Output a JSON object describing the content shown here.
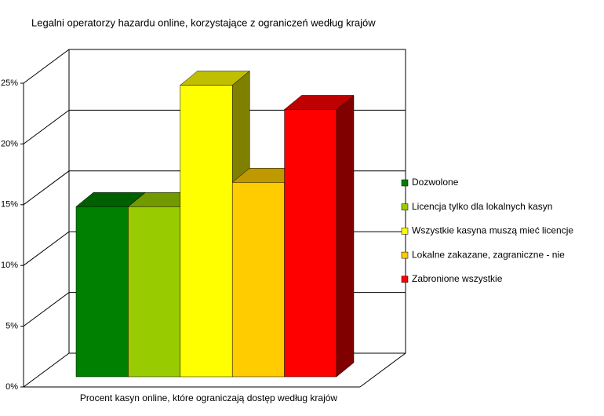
{
  "chart_data": {
    "type": "bar3d",
    "title": "Legalni operatorzy hazardu online, korzystające z ograniczeń według krajów",
    "categories": [
      "Procent kasyn online, które ograniczają dostęp według krajów"
    ],
    "series": [
      {
        "name": "Dozwolone",
        "color": "#008000",
        "values": [
          14
        ]
      },
      {
        "name": "Licencja tylko dla lokalnych kasyn",
        "color": "#99cc00",
        "values": [
          14
        ]
      },
      {
        "name": "Wszystkie kasyna muszą mieć licencje",
        "color": "#ffff00",
        "values": [
          24
        ]
      },
      {
        "name": "Lokalne zakazane, zagraniczne - nie",
        "color": "#ffcc00",
        "values": [
          16
        ]
      },
      {
        "name": "Zabronione wszystkie",
        "color": "#ff0000",
        "values": [
          22
        ]
      }
    ],
    "ylim": [
      0,
      25
    ],
    "yticks": [
      {
        "value": 0,
        "label": "0%"
      },
      {
        "value": 5,
        "label": "5%"
      },
      {
        "value": 10,
        "label": "10%"
      },
      {
        "value": 15,
        "label": "15%"
      },
      {
        "value": 20,
        "label": "20%"
      },
      {
        "value": 25,
        "label": "25%"
      }
    ],
    "grid": true,
    "legend": "right"
  }
}
